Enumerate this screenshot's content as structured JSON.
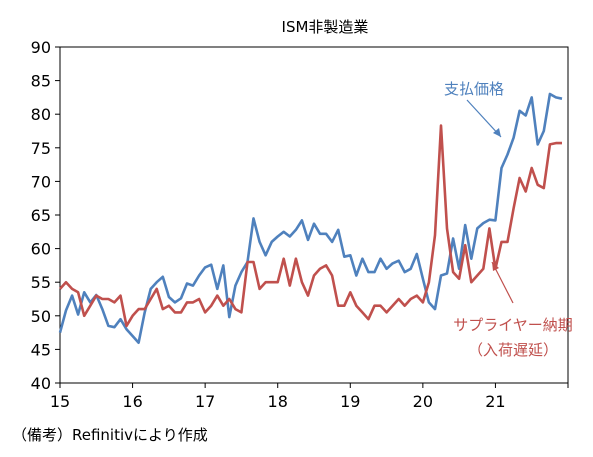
{
  "chart_data": {
    "type": "line",
    "title": "ISM非製造業",
    "ylim": [
      40,
      90
    ],
    "yticks": [
      "40",
      "45",
      "50",
      "55",
      "60",
      "65",
      "70",
      "75",
      "80",
      "85",
      "90"
    ],
    "xlim": [
      2015,
      2022
    ],
    "xticks": [
      "15",
      "16",
      "17",
      "18",
      "19",
      "20",
      "21"
    ],
    "grid": false,
    "series": [
      {
        "name": "支払価格",
        "color": "#4f81bd",
        "x": [
          2015.0,
          2015.083,
          2015.167,
          2015.25,
          2015.333,
          2015.417,
          2015.5,
          2015.583,
          2015.667,
          2015.75,
          2015.833,
          2015.917,
          2016.0,
          2016.083,
          2016.167,
          2016.25,
          2016.333,
          2016.417,
          2016.5,
          2016.583,
          2016.667,
          2016.75,
          2016.833,
          2016.917,
          2017.0,
          2017.083,
          2017.167,
          2017.25,
          2017.333,
          2017.417,
          2017.5,
          2017.583,
          2017.667,
          2017.75,
          2017.833,
          2017.917,
          2018.0,
          2018.083,
          2018.167,
          2018.25,
          2018.333,
          2018.417,
          2018.5,
          2018.583,
          2018.667,
          2018.75,
          2018.833,
          2018.917,
          2019.0,
          2019.083,
          2019.167,
          2019.25,
          2019.333,
          2019.417,
          2019.5,
          2019.583,
          2019.667,
          2019.75,
          2019.833,
          2019.917,
          2020.0,
          2020.083,
          2020.167,
          2020.25,
          2020.333,
          2020.417,
          2020.5,
          2020.583,
          2020.667,
          2020.75,
          2020.833,
          2020.917,
          2021.0,
          2021.083,
          2021.167,
          2021.25,
          2021.333,
          2021.417,
          2021.5,
          2021.583,
          2021.667,
          2021.75,
          2021.833,
          2021.917
        ],
        "values": [
          47.5,
          50.8,
          53.0,
          50.2,
          53.5,
          52.0,
          53.1,
          51.0,
          48.5,
          48.3,
          49.5,
          48.0,
          47.0,
          46.0,
          50.5,
          54.0,
          55.0,
          55.8,
          52.8,
          52.0,
          52.6,
          54.8,
          54.5,
          56.0,
          57.2,
          57.6,
          54.0,
          57.5,
          49.8,
          54.5,
          56.5,
          58.0,
          64.5,
          61.0,
          59.0,
          61.0,
          61.8,
          62.5,
          61.8,
          62.8,
          64.2,
          61.3,
          63.7,
          62.2,
          62.2,
          61.0,
          62.8,
          58.8,
          59.0,
          56.0,
          58.5,
          56.5,
          56.5,
          58.5,
          57.0,
          57.8,
          58.2,
          56.5,
          57.0,
          59.2,
          55.5,
          52.0,
          51.0,
          56.0,
          56.3,
          61.5,
          57.0,
          63.5,
          58.5,
          63.0,
          63.8,
          64.3,
          64.2,
          72.0,
          74.0,
          76.5,
          80.5,
          79.8,
          82.5,
          75.5,
          77.5,
          83.0,
          82.5,
          82.3
        ]
      },
      {
        "name": "サプライヤー納期",
        "name_line2": "（入荷遅延）",
        "color": "#c0504d",
        "x": [
          2015.0,
          2015.083,
          2015.167,
          2015.25,
          2015.333,
          2015.417,
          2015.5,
          2015.583,
          2015.667,
          2015.75,
          2015.833,
          2015.917,
          2016.0,
          2016.083,
          2016.167,
          2016.25,
          2016.333,
          2016.417,
          2016.5,
          2016.583,
          2016.667,
          2016.75,
          2016.833,
          2016.917,
          2017.0,
          2017.083,
          2017.167,
          2017.25,
          2017.333,
          2017.417,
          2017.5,
          2017.583,
          2017.667,
          2017.75,
          2017.833,
          2017.917,
          2018.0,
          2018.083,
          2018.167,
          2018.25,
          2018.333,
          2018.417,
          2018.5,
          2018.583,
          2018.667,
          2018.75,
          2018.833,
          2018.917,
          2019.0,
          2019.083,
          2019.167,
          2019.25,
          2019.333,
          2019.417,
          2019.5,
          2019.583,
          2019.667,
          2019.75,
          2019.833,
          2019.917,
          2020.0,
          2020.083,
          2020.167,
          2020.25,
          2020.333,
          2020.417,
          2020.5,
          2020.583,
          2020.667,
          2020.75,
          2020.833,
          2020.917,
          2021.0,
          2021.083,
          2021.167,
          2021.25,
          2021.333,
          2021.417,
          2021.5,
          2021.583,
          2021.667,
          2021.75,
          2021.833,
          2021.917
        ],
        "values": [
          54.0,
          55.0,
          54.0,
          53.5,
          50.0,
          51.5,
          53.0,
          52.5,
          52.5,
          52.0,
          53.0,
          48.5,
          50.0,
          51.0,
          51.0,
          52.5,
          54.0,
          51.0,
          51.5,
          50.5,
          50.5,
          52.0,
          52.0,
          52.5,
          50.5,
          51.5,
          53.0,
          51.5,
          52.5,
          51.0,
          50.5,
          58.0,
          58.0,
          54.0,
          55.0,
          55.0,
          55.0,
          58.5,
          54.5,
          58.5,
          55.0,
          53.0,
          56.0,
          57.0,
          57.5,
          56.0,
          51.5,
          51.5,
          53.5,
          51.5,
          50.5,
          49.5,
          51.5,
          51.5,
          50.5,
          51.5,
          52.5,
          51.5,
          52.5,
          53.0,
          52.0,
          55.0,
          62.0,
          78.3,
          63.0,
          56.5,
          55.5,
          60.5,
          55.0,
          56.0,
          57.0,
          63.0,
          57.0,
          61.0,
          61.0,
          66.0,
          70.5,
          68.5,
          72.0,
          69.5,
          69.0,
          75.5,
          75.7,
          75.7
        ]
      }
    ]
  },
  "footnote": "（備考）Refinitivにより作成"
}
